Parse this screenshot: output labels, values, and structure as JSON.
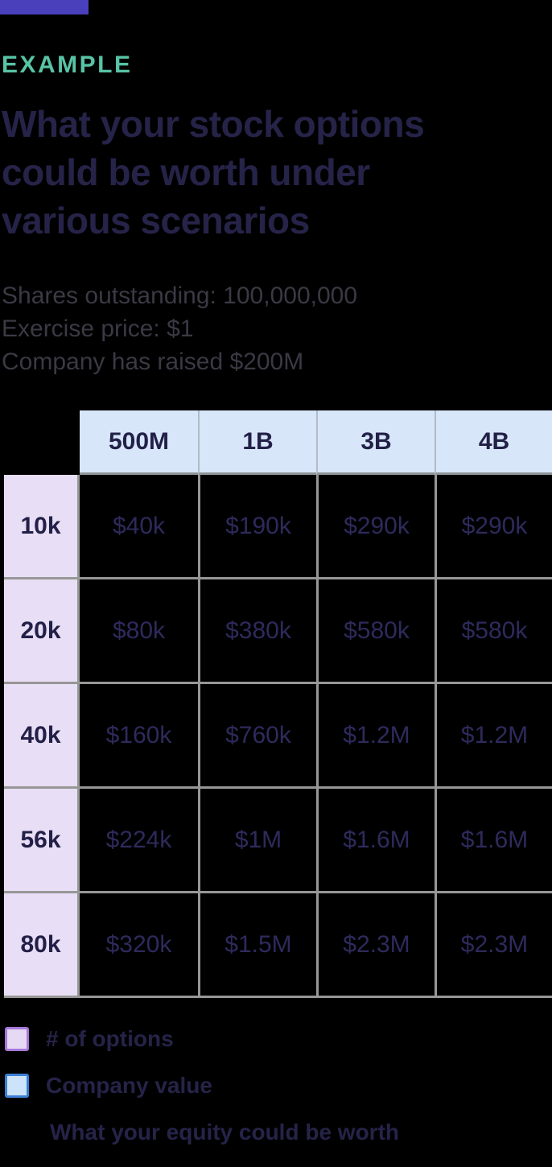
{
  "header": {
    "eyebrow": "EXAMPLE",
    "title_lines": [
      "What your stock options",
      "could be worth under",
      "various scenarios"
    ],
    "assumptions": [
      "Shares outstanding: 100,000,000",
      "Exercise price: $1",
      "Company has raised $200M"
    ]
  },
  "chart_data": {
    "type": "table",
    "title": "What your stock options could be worth under various scenarios",
    "assumptions": [
      "Shares outstanding: 100,000,000",
      "Exercise price: $1",
      "Company has raised $200M"
    ],
    "column_axis_meaning": "Company value",
    "row_axis_meaning": "# of options",
    "cell_meaning": "What your equity could be worth",
    "columns": [
      "500M",
      "1B",
      "3B",
      "4B"
    ],
    "rows": [
      {
        "label": "10k",
        "values": [
          "$40k",
          "$190k",
          "$290k",
          "$290k"
        ]
      },
      {
        "label": "20k",
        "values": [
          "$80k",
          "$380k",
          "$580k",
          "$580k"
        ]
      },
      {
        "label": "40k",
        "values": [
          "$160k",
          "$760k",
          "$1.2M",
          "$1.2M"
        ]
      },
      {
        "label": "56k",
        "values": [
          "$224k",
          "$1M",
          "$1.6M",
          "$1.6M"
        ]
      },
      {
        "label": "80k",
        "values": [
          "$320k",
          "$1.5M",
          "$2.3M",
          "$2.3M"
        ]
      }
    ]
  },
  "legend": {
    "items": [
      {
        "label": "# of options",
        "swatch_fill": "#e6d9f4",
        "swatch_border": "#a678d8"
      },
      {
        "label": "Company value",
        "swatch_fill": "#cde3fa",
        "swatch_border": "#3b7fd4"
      },
      {
        "label": "What your equity could be worth",
        "swatch_fill": null,
        "swatch_border": null
      }
    ]
  },
  "colors": {
    "background": "#000000",
    "accent_bar": "#4a40bb",
    "eyebrow_teal": "#57c4a5",
    "title_navy": "#262349",
    "assumptions_text": "#3a3944",
    "column_header_bg": "#d7e6f9",
    "row_header_bg": "#e8def5",
    "grid_line": "#979797",
    "header_divider": "#b2bbc6",
    "cell_text": "#2e2a5c"
  }
}
